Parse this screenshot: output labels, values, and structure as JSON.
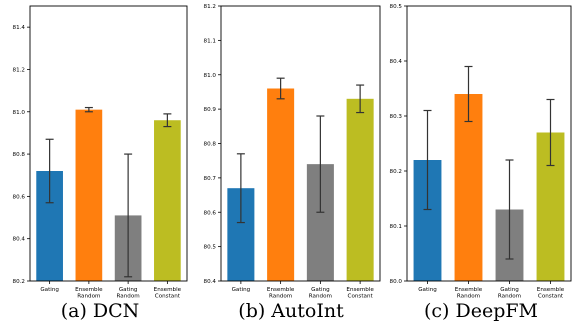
{
  "captions": [
    "(a) DCN",
    "(b) AutoInt",
    "(c) DeepFM"
  ],
  "colors": {
    "gating": "#1f77b4",
    "ensemble_random": "#ff7f0e",
    "gating_random": "#7f7f7f",
    "ensemble_constant": "#bcbd22"
  },
  "chart_data": [
    {
      "type": "bar",
      "title": "",
      "categories": [
        [
          "Gating"
        ],
        [
          "Ensemble",
          "Random"
        ],
        [
          "Gating",
          "Random"
        ],
        [
          "Ensemble",
          "Constant"
        ]
      ],
      "values": [
        80.72,
        81.01,
        80.51,
        80.96
      ],
      "error": [
        0.15,
        0.01,
        0.29,
        0.03
      ],
      "ylim": [
        80.2,
        81.5
      ],
      "yticks": [
        "80.2",
        "80.4",
        "80.6",
        "80.8",
        "81.0",
        "81.2",
        "81.4"
      ],
      "ytick_values": [
        80.2,
        80.4,
        80.6,
        80.8,
        81.0,
        81.2,
        81.4
      ],
      "xlabel": "",
      "ylabel": "",
      "grid": false
    },
    {
      "type": "bar",
      "title": "",
      "categories": [
        [
          "Gating"
        ],
        [
          "Ensemble",
          "Random"
        ],
        [
          "Gating",
          "Random"
        ],
        [
          "Ensemble",
          "Constant"
        ]
      ],
      "values": [
        80.67,
        80.96,
        80.74,
        80.93
      ],
      "error": [
        0.1,
        0.03,
        0.14,
        0.04
      ],
      "ylim": [
        80.4,
        81.2
      ],
      "yticks": [
        "80.4",
        "80.5",
        "80.6",
        "80.7",
        "80.8",
        "80.9",
        "81.0",
        "81.1",
        "81.2"
      ],
      "ytick_values": [
        80.4,
        80.5,
        80.6,
        80.7,
        80.8,
        80.9,
        81.0,
        81.1,
        81.2
      ],
      "xlabel": "",
      "ylabel": "",
      "grid": false
    },
    {
      "type": "bar",
      "title": "",
      "categories": [
        [
          "Gating"
        ],
        [
          "Ensemble",
          "Random"
        ],
        [
          "Gating",
          "Random"
        ],
        [
          "Ensemble",
          "Constant"
        ]
      ],
      "values": [
        80.22,
        80.34,
        80.13,
        80.27
      ],
      "error": [
        0.09,
        0.05,
        0.09,
        0.06
      ],
      "ylim": [
        80.0,
        80.5
      ],
      "yticks": [
        "80.0",
        "80.1",
        "80.2",
        "80.3",
        "80.4",
        "80.5"
      ],
      "ytick_values": [
        80.0,
        80.1,
        80.2,
        80.3,
        80.4,
        80.5
      ],
      "xlabel": "",
      "ylabel": "",
      "grid": false
    }
  ]
}
